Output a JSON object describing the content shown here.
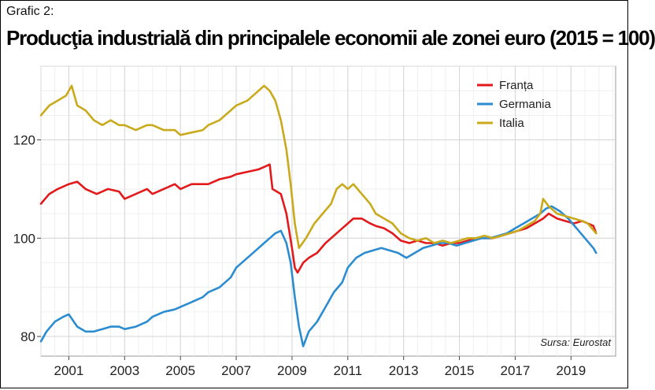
{
  "header": {
    "kicker": "Grafic 2:",
    "title": "Producţia industrială din principalele economii ale zonei euro (2015 = 100)"
  },
  "source": "Sursa: Eurostat",
  "colors": {
    "Franța": "#e31a1c",
    "Germania": "#2b8cd0",
    "Italia": "#c9aa1d"
  },
  "chart_data": {
    "type": "line",
    "title": "Producţia industrială din principalele economii ale zonei euro (2015 = 100)",
    "xlabel": "",
    "ylabel": "",
    "xlim": [
      2000,
      2020.6
    ],
    "ylim": [
      76,
      135
    ],
    "x_ticks": [
      "2001",
      "2003",
      "2005",
      "2007",
      "2009",
      "2011",
      "2013",
      "2015",
      "2017",
      "2019"
    ],
    "y_ticks": [
      "80",
      "100",
      "120"
    ],
    "grid": true,
    "legend_position": "top-right",
    "series": [
      {
        "name": "Franța",
        "color": "#e31a1c",
        "x": [
          2000.0,
          2000.3,
          2000.6,
          2001.0,
          2001.3,
          2001.6,
          2002.0,
          2002.4,
          2002.8,
          2003.0,
          2003.4,
          2003.8,
          2004.0,
          2004.4,
          2004.8,
          2005.0,
          2005.4,
          2005.8,
          2006.0,
          2006.4,
          2006.8,
          2007.0,
          2007.4,
          2007.8,
          2008.0,
          2008.2,
          2008.3,
          2008.6,
          2008.8,
          2009.0,
          2009.1,
          2009.2,
          2009.4,
          2009.6,
          2009.9,
          2010.2,
          2010.5,
          2010.8,
          2011.0,
          2011.2,
          2011.5,
          2011.8,
          2012.0,
          2012.3,
          2012.6,
          2012.9,
          2013.2,
          2013.5,
          2013.8,
          2014.1,
          2014.4,
          2014.7,
          2015.0,
          2015.3,
          2015.6,
          2015.9,
          2016.2,
          2016.5,
          2016.8,
          2017.1,
          2017.4,
          2017.7,
          2018.0,
          2018.2,
          2018.5,
          2018.8,
          2019.1,
          2019.4,
          2019.6,
          2019.8,
          2019.9
        ],
        "y": [
          107,
          109,
          110,
          111,
          111.5,
          110,
          109,
          110,
          109.5,
          108,
          109,
          110,
          109,
          110,
          111,
          110,
          111,
          111,
          111,
          112,
          112.5,
          113,
          113.5,
          114,
          114.5,
          115,
          110,
          109,
          105,
          98,
          94,
          93,
          95,
          96,
          97,
          99,
          100.5,
          102,
          103,
          104,
          104,
          103,
          102.5,
          102,
          101,
          99.5,
          99,
          99.5,
          99,
          99,
          98.5,
          99,
          99,
          99.5,
          100,
          100,
          100,
          100.5,
          101,
          101.5,
          102,
          103,
          104,
          105,
          104,
          103.5,
          103,
          103.5,
          103,
          102.5,
          101
        ]
      },
      {
        "name": "Germania",
        "color": "#2b8cd0",
        "x": [
          2000.0,
          2000.2,
          2000.5,
          2000.8,
          2001.0,
          2001.3,
          2001.6,
          2001.9,
          2002.2,
          2002.5,
          2002.8,
          2003.0,
          2003.4,
          2003.8,
          2004.0,
          2004.4,
          2004.8,
          2005.0,
          2005.4,
          2005.8,
          2006.0,
          2006.4,
          2006.8,
          2007.0,
          2007.4,
          2007.8,
          2008.0,
          2008.2,
          2008.4,
          2008.6,
          2008.8,
          2008.95,
          2009.1,
          2009.25,
          2009.4,
          2009.6,
          2009.9,
          2010.2,
          2010.5,
          2010.8,
          2011.0,
          2011.3,
          2011.6,
          2011.9,
          2012.2,
          2012.5,
          2012.8,
          2013.1,
          2013.4,
          2013.7,
          2014.0,
          2014.3,
          2014.6,
          2014.9,
          2015.2,
          2015.5,
          2015.8,
          2016.1,
          2016.4,
          2016.7,
          2017.0,
          2017.3,
          2017.6,
          2017.9,
          2018.1,
          2018.3,
          2018.6,
          2018.9,
          2019.2,
          2019.5,
          2019.8,
          2019.9
        ],
        "y": [
          79,
          81,
          83,
          84,
          84.5,
          82,
          81,
          81,
          81.5,
          82,
          82,
          81.5,
          82,
          83,
          84,
          85,
          85.5,
          86,
          87,
          88,
          89,
          90,
          92,
          94,
          96,
          98,
          99,
          100,
          101,
          101.5,
          99,
          95,
          88,
          82,
          78,
          81,
          83,
          86,
          89,
          91,
          94,
          96,
          97,
          97.5,
          98,
          97.5,
          97,
          96,
          97,
          98,
          98.5,
          99,
          99,
          98.5,
          99,
          99.5,
          100,
          100,
          100.5,
          101,
          102,
          103,
          104,
          105,
          106,
          106.5,
          105.5,
          104,
          102,
          100,
          98,
          97
        ]
      },
      {
        "name": "Italia",
        "color": "#c9aa1d",
        "x": [
          2000.0,
          2000.3,
          2000.6,
          2000.9,
          2001.1,
          2001.3,
          2001.6,
          2001.9,
          2002.2,
          2002.5,
          2002.8,
          2003.0,
          2003.4,
          2003.8,
          2004.0,
          2004.4,
          2004.8,
          2005.0,
          2005.4,
          2005.8,
          2006.0,
          2006.4,
          2006.8,
          2007.0,
          2007.4,
          2007.7,
          2008.0,
          2008.2,
          2008.4,
          2008.6,
          2008.8,
          2008.95,
          2009.1,
          2009.25,
          2009.5,
          2009.8,
          2010.1,
          2010.4,
          2010.6,
          2010.8,
          2011.0,
          2011.2,
          2011.5,
          2011.8,
          2012.0,
          2012.3,
          2012.6,
          2012.9,
          2013.2,
          2013.5,
          2013.8,
          2014.1,
          2014.4,
          2014.7,
          2015.0,
          2015.3,
          2015.6,
          2015.9,
          2016.2,
          2016.5,
          2016.8,
          2017.1,
          2017.4,
          2017.7,
          2017.9,
          2018.0,
          2018.2,
          2018.5,
          2018.8,
          2019.1,
          2019.4,
          2019.6,
          2019.9
        ],
        "y": [
          125,
          127,
          128,
          129,
          131,
          127,
          126,
          124,
          123,
          124,
          123,
          123,
          122,
          123,
          123,
          122,
          122,
          121,
          121.5,
          122,
          123,
          124,
          126,
          127,
          128,
          129.5,
          131,
          130,
          128,
          124,
          118,
          111,
          103,
          98,
          100,
          103,
          105,
          107,
          110,
          111,
          110,
          111,
          109,
          107,
          105,
          104,
          103,
          101,
          100,
          99.5,
          100,
          99,
          99.5,
          99,
          99.5,
          100,
          100,
          100.5,
          100,
          100.5,
          101,
          101.5,
          102.5,
          103.5,
          105,
          108,
          106.5,
          105,
          104.5,
          104,
          103.5,
          103,
          101
        ]
      }
    ]
  }
}
